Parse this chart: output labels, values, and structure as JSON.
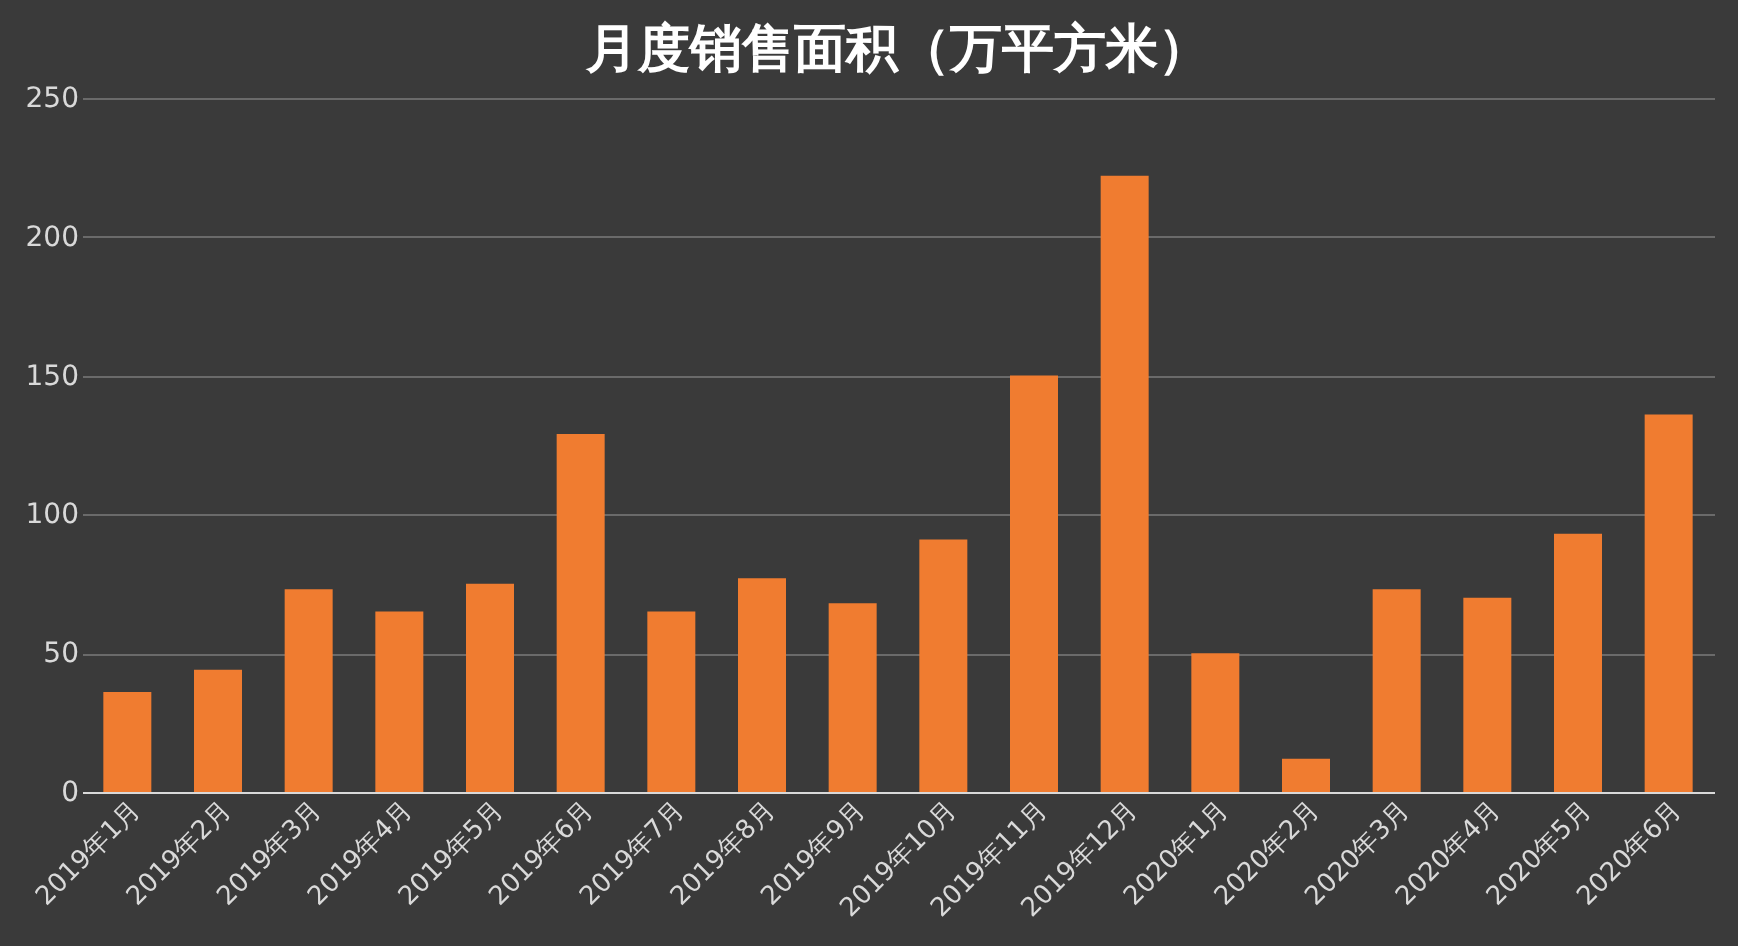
{
  "chart_data": {
    "type": "bar",
    "title": "月度销售面积（万平方米）",
    "categories": [
      "2019年1月",
      "2019年2月",
      "2019年3月",
      "2019年4月",
      "2019年5月",
      "2019年6月",
      "2019年7月",
      "2019年8月",
      "2019年9月",
      "2019年10月",
      "2019年11月",
      "2019年12月",
      "2020年1月",
      "2020年2月",
      "2020年3月",
      "2020年4月",
      "2020年5月",
      "2020年6月"
    ],
    "values": [
      36,
      44,
      73,
      65,
      75,
      129,
      65,
      77,
      68,
      91,
      150,
      222,
      50,
      12,
      73,
      70,
      93,
      136
    ],
    "color": "#f07c30",
    "ylim": [
      0,
      250
    ],
    "yticks": [
      0,
      50,
      100,
      150,
      200,
      250
    ],
    "grid": "y"
  }
}
